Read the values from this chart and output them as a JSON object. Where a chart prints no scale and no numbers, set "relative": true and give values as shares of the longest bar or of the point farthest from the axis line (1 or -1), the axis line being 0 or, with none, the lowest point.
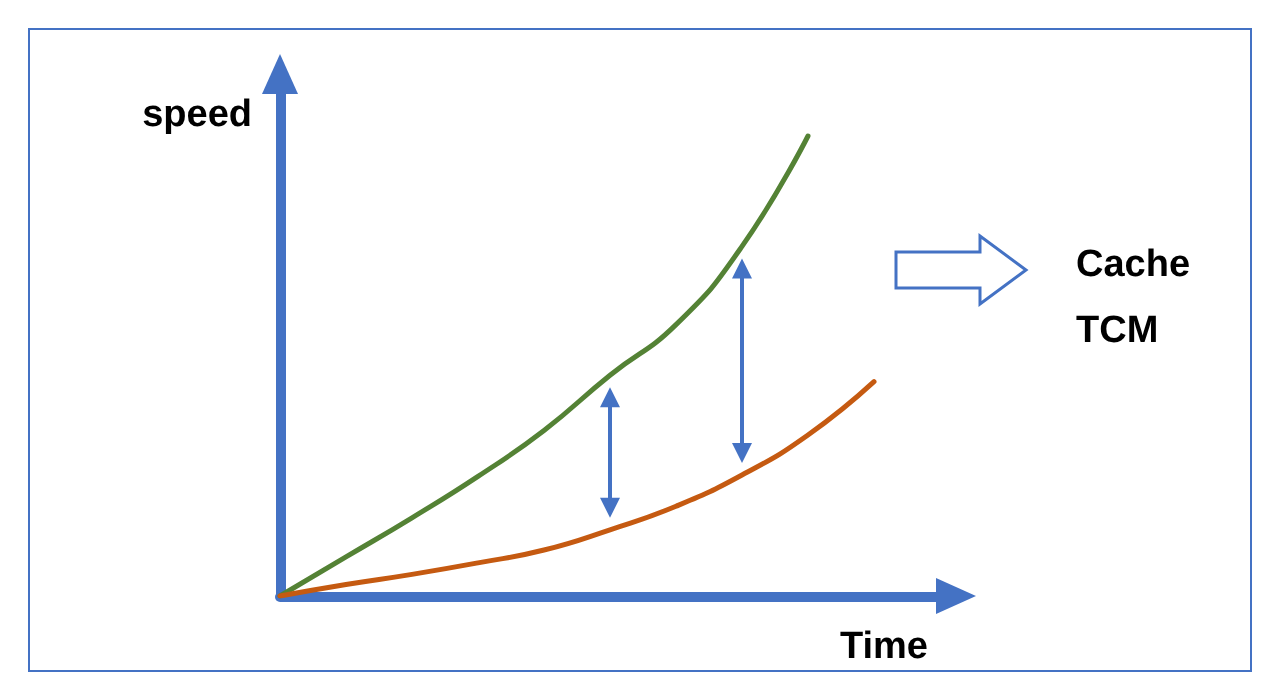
{
  "chart_data": {
    "type": "line",
    "relative": true,
    "xlabel": "Time",
    "ylabel": "speed",
    "categories": [
      null,
      null,
      null,
      null,
      null,
      null,
      null,
      null,
      null,
      null,
      null
    ],
    "series": [
      {
        "color": "#548235",
        "values": [
          0,
          0.085,
          0.17,
          0.26,
          0.36,
          0.48,
          0.59,
          0.76,
          1.0,
          null,
          null
        ]
      },
      {
        "color": "#c55a11",
        "values": [
          0,
          0.025,
          0.047,
          0.072,
          0.1,
          0.144,
          0.195,
          0.263,
          0.35,
          0.466,
          null
        ]
      }
    ],
    "annotations": [
      "Cache",
      "TCM"
    ],
    "grid": false,
    "marker": "none",
    "line_style": "solid"
  }
}
